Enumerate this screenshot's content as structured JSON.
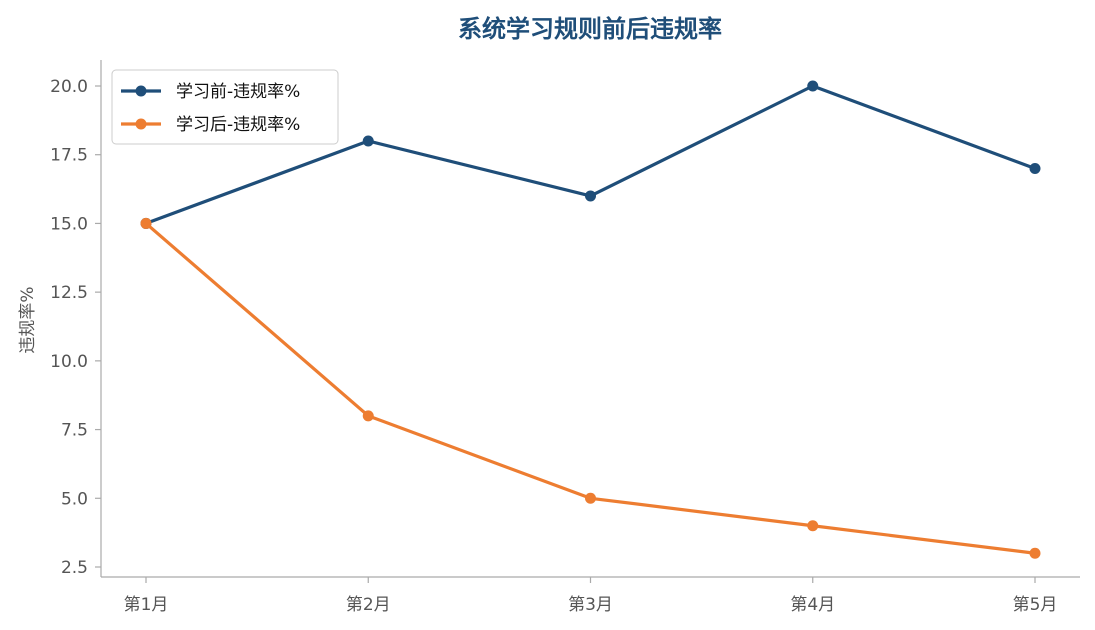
{
  "chart_data": {
    "type": "line",
    "title": "系统学习规则前后违规率",
    "xlabel": "",
    "ylabel": "违规率%",
    "categories": [
      "第1月",
      "第2月",
      "第3月",
      "第4月",
      "第5月"
    ],
    "series": [
      {
        "name": "学习前-违规率%",
        "values": [
          15,
          18,
          16,
          20,
          17
        ],
        "color": "#1f4e79"
      },
      {
        "name": "学习后-违规率%",
        "values": [
          15,
          8,
          5,
          4,
          3
        ],
        "color": "#ed7d31"
      }
    ],
    "yticks": [
      "2.5",
      "5.0",
      "7.5",
      "10.0",
      "12.5",
      "15.0",
      "17.5",
      "20.0"
    ],
    "ylim": [
      2.5,
      20.0
    ],
    "grid": false,
    "legend_position": "top-left",
    "title_color": "#1f4e79"
  }
}
